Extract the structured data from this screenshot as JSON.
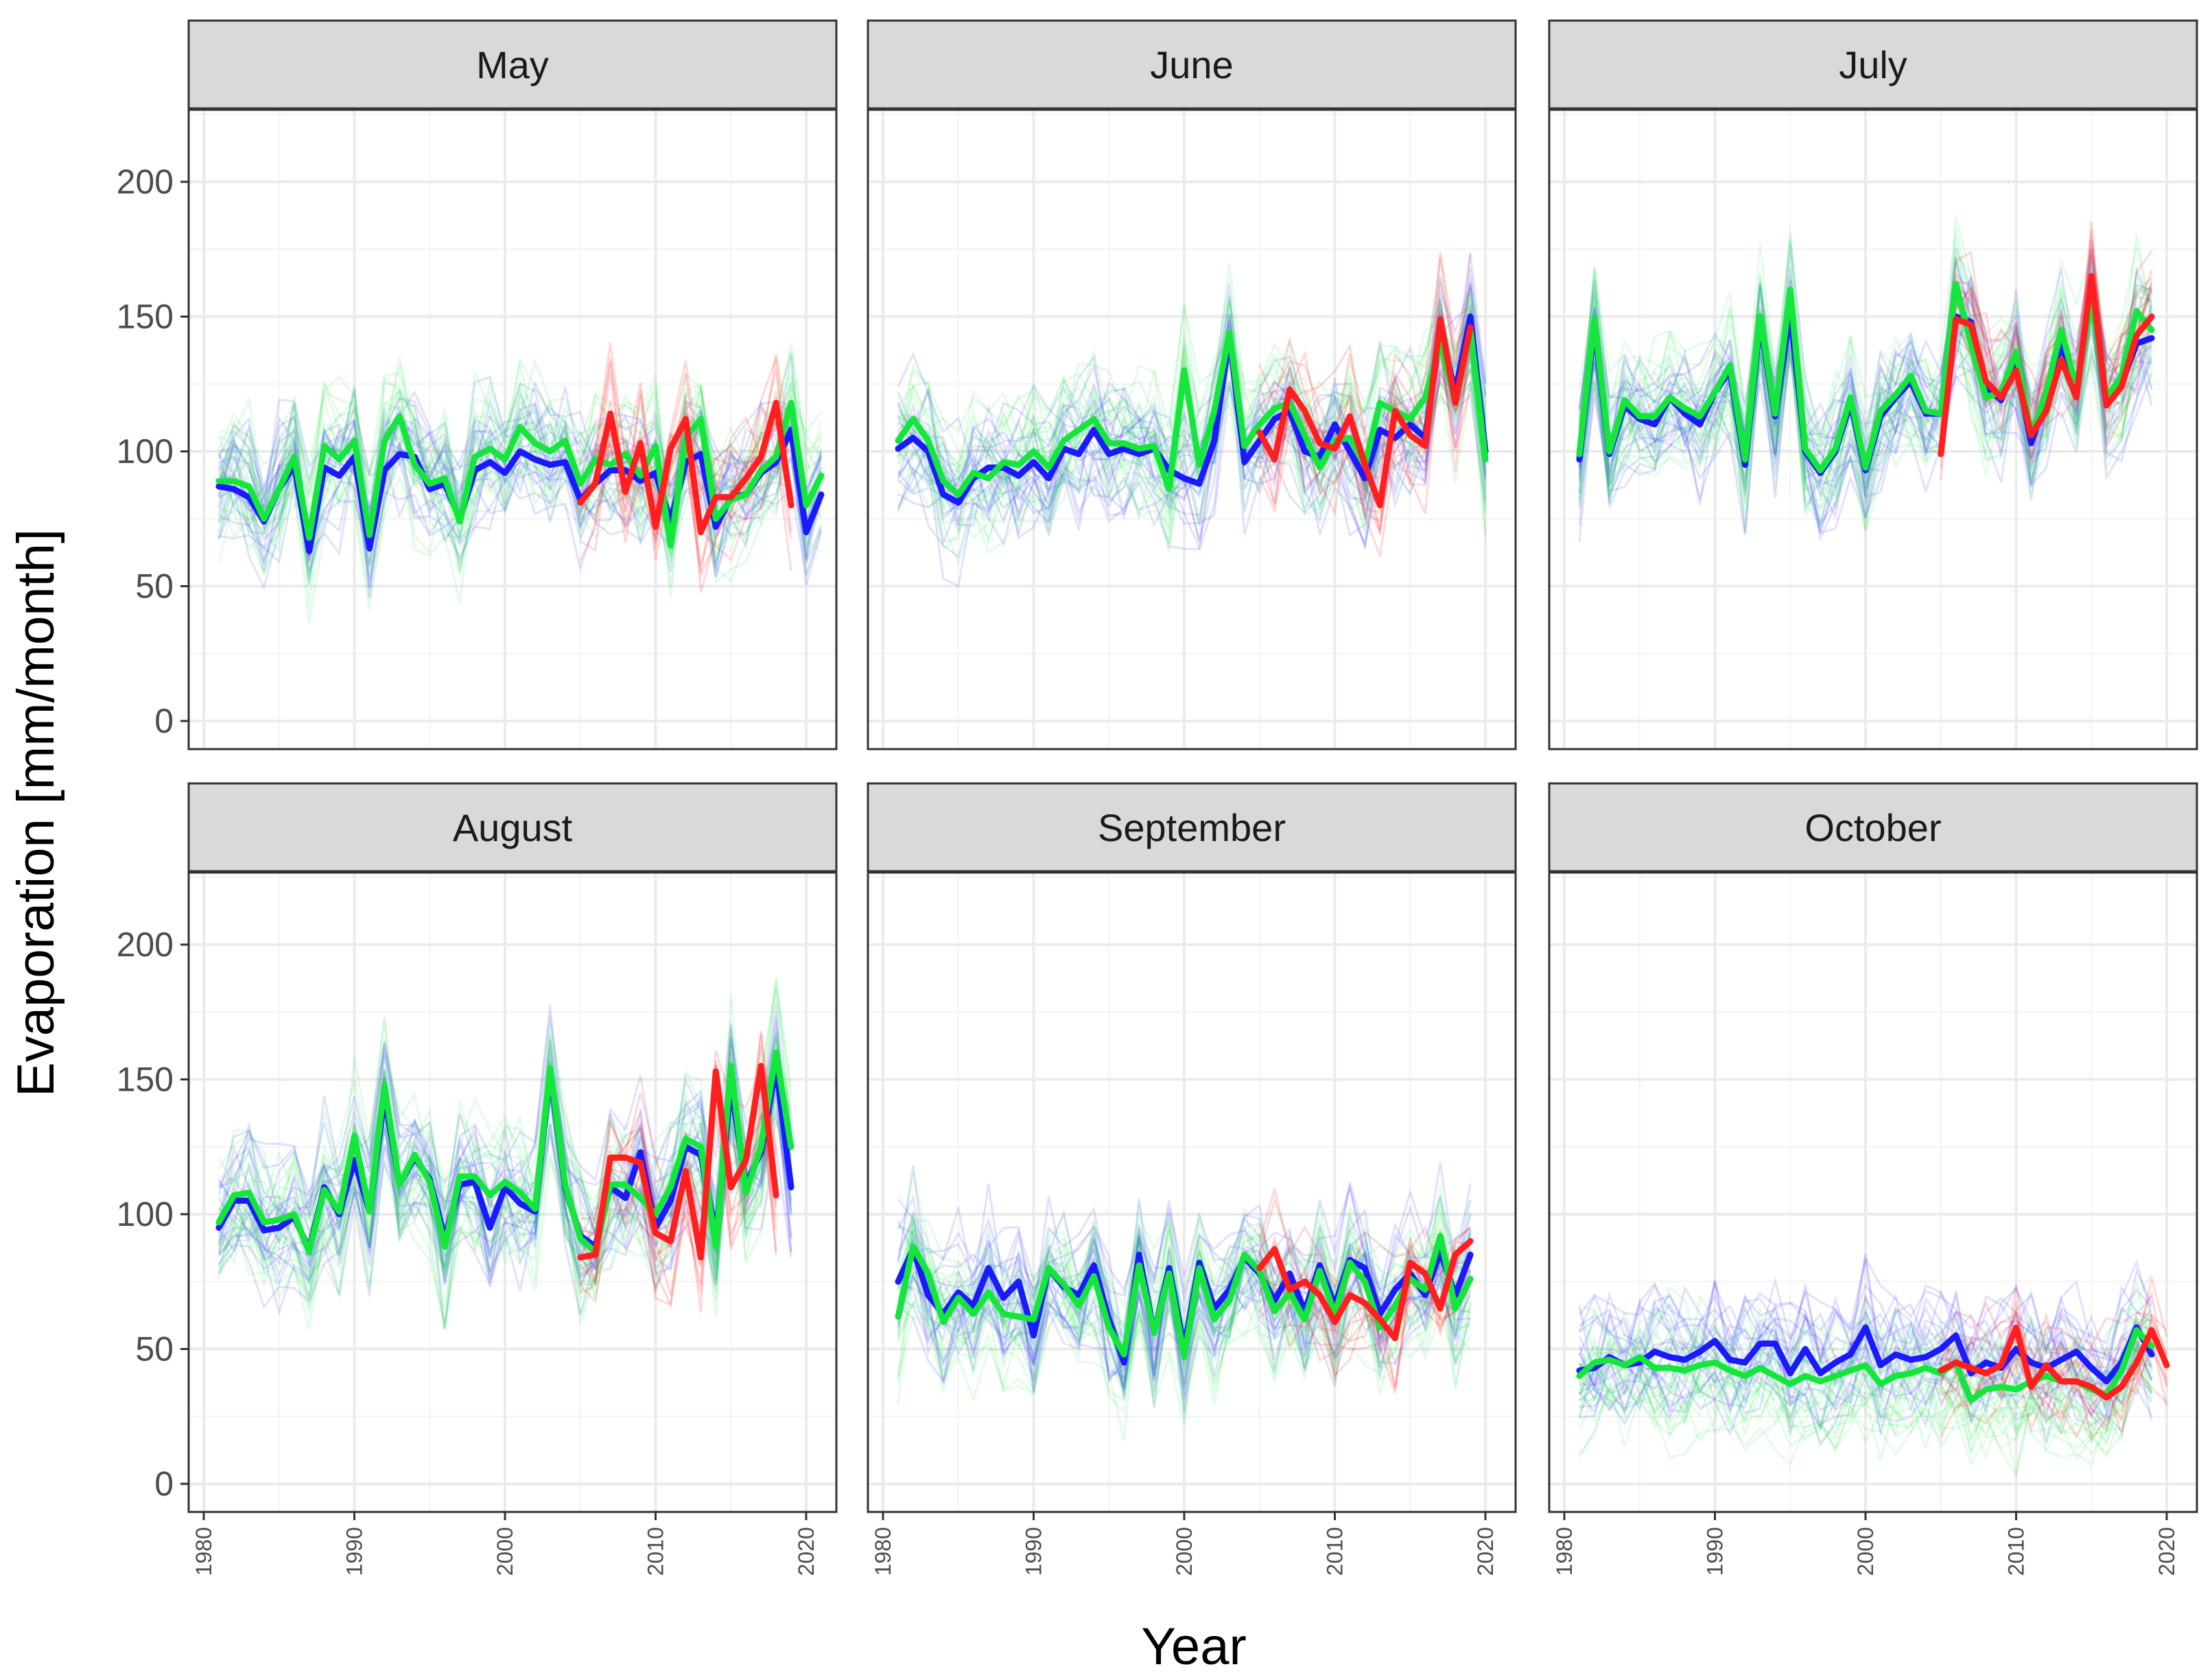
{
  "chart_data": {
    "type": "line",
    "facet_layout": "2x3",
    "xlabel": "Year",
    "ylabel": "Evaporation [mm/month]",
    "xlim": [
      1980,
      2020
    ],
    "ylim": [
      0,
      220
    ],
    "x_ticks": [
      "1980",
      "1990",
      "2000",
      "2010",
      "2020"
    ],
    "y_ticks": [
      "0",
      "50",
      "100",
      "150",
      "200"
    ],
    "colors": {
      "blue": "#1a1aff",
      "green": "#14e63c",
      "red": "#ff1f1f",
      "strip_bg": "#d9d9d9",
      "grid": "#ebebeb"
    },
    "panels": [
      {
        "title": "May",
        "series": [
          {
            "name": "blue",
            "color": "#1a1aff",
            "x_start": 1981,
            "values": [
              87,
              86,
              83,
              74,
              86,
              95,
              63,
              94,
              91,
              98,
              64,
              93,
              99,
              98,
              86,
              88,
              75,
              93,
              96,
              92,
              100,
              97,
              95,
              96,
              82,
              88,
              93,
              93,
              89,
              92,
              74,
              96,
              99,
              72,
              83,
              84,
              92,
              96,
              108,
              70,
              84
            ]
          },
          {
            "name": "green",
            "color": "#14e63c",
            "x_start": 1981,
            "values": [
              89,
              89,
              87,
              75,
              86,
              98,
              68,
              102,
              97,
              104,
              69,
              104,
              113,
              95,
              88,
              90,
              74,
              98,
              101,
              97,
              109,
              103,
              100,
              104,
              88,
              97,
              95,
              99,
              91,
              102,
              65,
              105,
              112,
              75,
              82,
              84,
              93,
              98,
              118,
              80,
              91
            ]
          },
          {
            "name": "red",
            "color": "#ff1f1f",
            "x_start": 2005,
            "values": [
              81,
              88,
              114,
              85,
              103,
              72,
              101,
              112,
              70,
              83,
              83,
              90,
              98,
              118,
              80
            ]
          }
        ]
      },
      {
        "title": "June",
        "series": [
          {
            "name": "blue",
            "color": "#1a1aff",
            "x_start": 1981,
            "values": [
              101,
              105,
              100,
              84,
              81,
              90,
              94,
              94,
              91,
              96,
              90,
              101,
              99,
              108,
              99,
              101,
              99,
              101,
              93,
              90,
              88,
              104,
              143,
              96,
              104,
              112,
              115,
              100,
              98,
              110,
              100,
              90,
              108,
              105,
              110,
              105,
              145,
              122,
              150,
              100
            ]
          },
          {
            "name": "green",
            "color": "#14e63c",
            "x_start": 1981,
            "values": [
              104,
              112,
              104,
              89,
              84,
              92,
              90,
              96,
              95,
              100,
              94,
              104,
              108,
              112,
              103,
              103,
              101,
              102,
              86,
              130,
              95,
              115,
              144,
              102,
              110,
              116,
              118,
              106,
              94,
              104,
              105,
              95,
              118,
              115,
              112,
              120,
              140,
              118,
              145,
              97
            ]
          },
          {
            "name": "red",
            "color": "#ff1f1f",
            "x_start": 2005,
            "values": [
              107,
              97,
              123,
              115,
              103,
              101,
              113,
              95,
              80,
              115,
              106,
              102,
              149,
              118,
              146
            ]
          }
        ]
      },
      {
        "title": "July",
        "series": [
          {
            "name": "blue",
            "color": "#1a1aff",
            "x_start": 1981,
            "values": [
              97,
              147,
              99,
              117,
              112,
              110,
              120,
              114,
              110,
              122,
              130,
              95,
              148,
              113,
              152,
              100,
              92,
              100,
              118,
              93,
              113,
              120,
              126,
              114,
              114,
              150,
              148,
              124,
              119,
              133,
              103,
              120,
              140,
              122,
              160,
              118,
              125,
              140,
              142
            ]
          },
          {
            "name": "green",
            "color": "#14e63c",
            "x_start": 1981,
            "values": [
              99,
              149,
              100,
              119,
              113,
              113,
              120,
              116,
              113,
              122,
              132,
              97,
              150,
              114,
              160,
              101,
              93,
              101,
              120,
              94,
              115,
              121,
              128,
              115,
              114,
              162,
              140,
              120,
              122,
              137,
              106,
              122,
              145,
              124,
              156,
              120,
              128,
              152,
              145
            ]
          },
          {
            "name": "red",
            "color": "#ff1f1f",
            "x_start": 2005,
            "values": [
              99,
              149,
              147,
              126,
              120,
              130,
              106,
              115,
              134,
              120,
              165,
              117,
              124,
              143,
              150
            ]
          }
        ]
      },
      {
        "title": "August",
        "series": [
          {
            "name": "blue",
            "color": "#1a1aff",
            "x_start": 1981,
            "values": [
              95,
              105,
              105,
              94,
              95,
              99,
              87,
              110,
              100,
              120,
              101,
              144,
              111,
              121,
              113,
              91,
              111,
              112,
              95,
              110,
              104,
              101,
              152,
              110,
              92,
              88,
              110,
              106,
              123,
              95,
              105,
              125,
              122,
              92,
              148,
              111,
              123,
              155,
              110
            ]
          },
          {
            "name": "green",
            "color": "#14e63c",
            "x_start": 1981,
            "values": [
              97,
              107,
              108,
              97,
              98,
              100,
              86,
              109,
              101,
              129,
              101,
              148,
              111,
              122,
              112,
              88,
              114,
              114,
              107,
              112,
              108,
              102,
              154,
              111,
              91,
              86,
              111,
              111,
              106,
              100,
              110,
              128,
              125,
              88,
              155,
              108,
              125,
              160,
              125
            ]
          },
          {
            "name": "red",
            "color": "#ff1f1f",
            "x_start": 2005,
            "values": [
              84,
              85,
              121,
              121,
              119,
              93,
              90,
              116,
              84,
              153,
              110,
              120,
              155,
              107
            ]
          }
        ]
      },
      {
        "title": "September",
        "series": [
          {
            "name": "blue",
            "color": "#1a1aff",
            "x_start": 1981,
            "values": [
              75,
              87,
              70,
              63,
              71,
              66,
              80,
              69,
              75,
              55,
              80,
              73,
              70,
              81,
              61,
              45,
              85,
              56,
              80,
              50,
              82,
              65,
              72,
              84,
              78,
              68,
              78,
              64,
              81,
              66,
              83,
              80,
              63,
              72,
              78,
              70,
              86,
              70,
              85
            ]
          },
          {
            "name": "green",
            "color": "#14e63c",
            "x_start": 1981,
            "values": [
              62,
              88,
              78,
              60,
              69,
              63,
              71,
              63,
              62,
              61,
              80,
              74,
              66,
              77,
              58,
              48,
              81,
              56,
              78,
              47,
              80,
              61,
              68,
              85,
              79,
              64,
              71,
              61,
              79,
              63,
              82,
              75,
              58,
              66,
              76,
              72,
              92,
              65,
              76
            ]
          },
          {
            "name": "red",
            "color": "#ff1f1f",
            "x_start": 2005,
            "values": [
              80,
              87,
              72,
              75,
              70,
              60,
              70,
              67,
              61,
              54,
              82,
              78,
              65,
              85,
              90
            ]
          }
        ]
      },
      {
        "title": "October",
        "series": [
          {
            "name": "blue",
            "color": "#1a1aff",
            "x_start": 1981,
            "values": [
              42,
              43,
              47,
              44,
              45,
              49,
              47,
              46,
              49,
              53,
              46,
              45,
              52,
              52,
              41,
              50,
              41,
              45,
              48,
              58,
              44,
              48,
              46,
              47,
              50,
              55,
              41,
              45,
              43,
              50,
              45,
              43,
              46,
              49,
              43,
              38,
              45,
              58,
              48
            ]
          },
          {
            "name": "green",
            "color": "#14e63c",
            "x_start": 1981,
            "values": [
              40,
              45,
              46,
              44,
              47,
              43,
              43,
              42,
              44,
              45,
              42,
              40,
              43,
              40,
              37,
              40,
              38,
              40,
              42,
              44,
              37,
              40,
              41,
              43,
              41,
              45,
              31,
              35,
              36,
              35,
              38,
              40,
              38,
              38,
              35,
              33,
              42,
              57,
              51
            ]
          },
          {
            "name": "red",
            "color": "#ff1f1f",
            "x_start": 2005,
            "values": [
              42,
              45,
              43,
              41,
              44,
              58,
              36,
              44,
              38,
              38,
              36,
              32,
              36,
              45,
              57,
              44
            ]
          }
        ]
      }
    ]
  }
}
